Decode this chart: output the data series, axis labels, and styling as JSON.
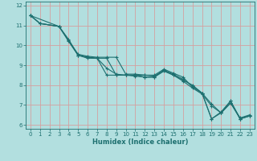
{
  "xlabel": "Humidex (Indice chaleur)",
  "xlim": [
    -0.5,
    23.5
  ],
  "ylim": [
    5.8,
    12.2
  ],
  "xticks": [
    0,
    1,
    2,
    3,
    4,
    5,
    6,
    7,
    8,
    9,
    10,
    11,
    12,
    13,
    14,
    15,
    16,
    17,
    18,
    19,
    20,
    21,
    22,
    23
  ],
  "yticks": [
    6,
    7,
    8,
    9,
    10,
    11,
    12
  ],
  "background_color": "#b2dfdf",
  "grid_color": "#d4a0a0",
  "line_color": "#1e7070",
  "lines": [
    {
      "x": [
        0,
        1,
        3,
        4,
        5,
        6,
        7,
        8,
        9,
        10,
        11,
        12,
        13,
        14,
        15,
        16,
        17,
        18,
        19,
        20,
        21,
        22,
        23
      ],
      "y": [
        11.5,
        11.1,
        10.95,
        10.3,
        9.5,
        9.4,
        9.35,
        9.35,
        8.5,
        8.5,
        8.5,
        8.5,
        8.45,
        8.75,
        8.55,
        8.3,
        7.95,
        7.6,
        6.3,
        6.65,
        7.2,
        6.3,
        6.45
      ]
    },
    {
      "x": [
        0,
        1,
        3,
        4,
        5,
        6,
        7,
        8,
        9,
        10,
        11,
        12,
        13,
        14,
        15,
        16,
        17,
        18,
        19,
        20,
        21,
        22,
        23
      ],
      "y": [
        11.5,
        11.1,
        10.95,
        10.2,
        9.5,
        9.35,
        9.35,
        8.85,
        8.55,
        8.5,
        8.5,
        8.4,
        8.4,
        8.75,
        8.5,
        8.2,
        7.85,
        7.55,
        6.95,
        6.6,
        7.1,
        6.3,
        6.45
      ]
    },
    {
      "x": [
        0,
        1,
        3,
        4,
        5,
        6,
        7,
        8,
        9,
        10,
        11,
        12,
        13,
        14,
        15,
        16,
        17,
        18,
        19,
        20,
        21,
        22,
        23
      ],
      "y": [
        11.5,
        11.1,
        10.95,
        10.25,
        9.55,
        9.45,
        9.4,
        9.4,
        9.4,
        8.55,
        8.55,
        8.5,
        8.5,
        8.8,
        8.6,
        8.4,
        7.9,
        7.6,
        7.05,
        6.6,
        7.1,
        6.35,
        6.5
      ]
    },
    {
      "x": [
        0,
        3,
        5,
        6,
        7,
        8,
        9,
        10,
        11,
        12,
        13,
        14,
        15,
        16,
        17,
        18,
        19,
        20,
        21,
        22,
        23
      ],
      "y": [
        11.5,
        10.95,
        9.5,
        9.4,
        9.35,
        8.5,
        8.5,
        8.5,
        8.45,
        8.4,
        8.4,
        8.7,
        8.5,
        8.25,
        8.0,
        7.6,
        6.3,
        6.6,
        7.2,
        6.3,
        6.45
      ]
    }
  ]
}
